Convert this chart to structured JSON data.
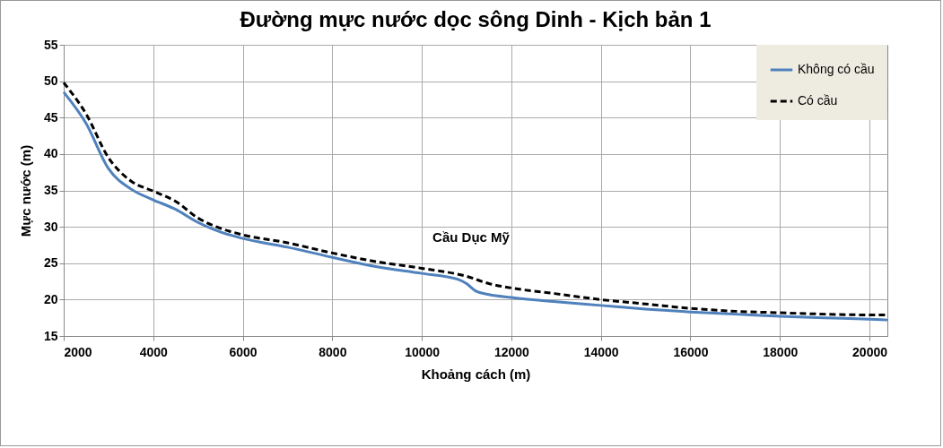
{
  "chart_data": {
    "type": "line",
    "title": "Đường mực nước dọc sông Dinh - Kịch bản 1",
    "xlabel": "Khoảng cách (m)",
    "ylabel": "Mực nước (m)",
    "xlim": [
      2000,
      20400
    ],
    "xticks": [
      2000,
      4000,
      6000,
      8000,
      10000,
      12000,
      14000,
      16000,
      18000,
      20000
    ],
    "ylim": [
      15,
      55
    ],
    "yticks": [
      15,
      20,
      25,
      30,
      35,
      40,
      45,
      50,
      55
    ],
    "grid": true,
    "legend": "top right",
    "marker": "none",
    "annotations": [
      {
        "text": "Cầu Dục Mỹ",
        "x": 11100,
        "y": 22.2
      }
    ],
    "series": [
      {
        "name": "Không có cầu",
        "color": "#4f81bd",
        "line_style": "solid",
        "x": [
          2000,
          2500,
          3000,
          3500,
          4000,
          4500,
          5000,
          5500,
          6000,
          7000,
          8000,
          9000,
          10000,
          10800,
          11000,
          11200,
          11500,
          12000,
          13000,
          14000,
          15000,
          16000,
          17000,
          18000,
          19000,
          20000,
          20400
        ],
        "values": [
          48.5,
          44.2,
          38.0,
          35.2,
          33.7,
          32.4,
          30.6,
          29.3,
          28.4,
          27.2,
          25.8,
          24.5,
          23.6,
          22.8,
          22.2,
          21.2,
          20.7,
          20.3,
          19.7,
          19.2,
          18.7,
          18.3,
          18.0,
          17.7,
          17.5,
          17.3,
          17.2
        ]
      },
      {
        "name": "Có cầu",
        "color": "#000000",
        "line_style": "dashed",
        "x": [
          2000,
          2500,
          3000,
          3500,
          4000,
          4500,
          5000,
          5500,
          6000,
          7000,
          8000,
          9000,
          10000,
          11000,
          11500,
          12000,
          13000,
          14000,
          15000,
          16000,
          17000,
          18000,
          19000,
          20000,
          20400
        ],
        "values": [
          49.8,
          45.5,
          39.5,
          36.3,
          34.9,
          33.5,
          31.2,
          29.8,
          28.9,
          27.8,
          26.4,
          25.2,
          24.3,
          23.2,
          22.2,
          21.6,
          20.8,
          20.0,
          19.4,
          18.8,
          18.4,
          18.2,
          18.0,
          17.9,
          17.9
        ]
      }
    ]
  }
}
